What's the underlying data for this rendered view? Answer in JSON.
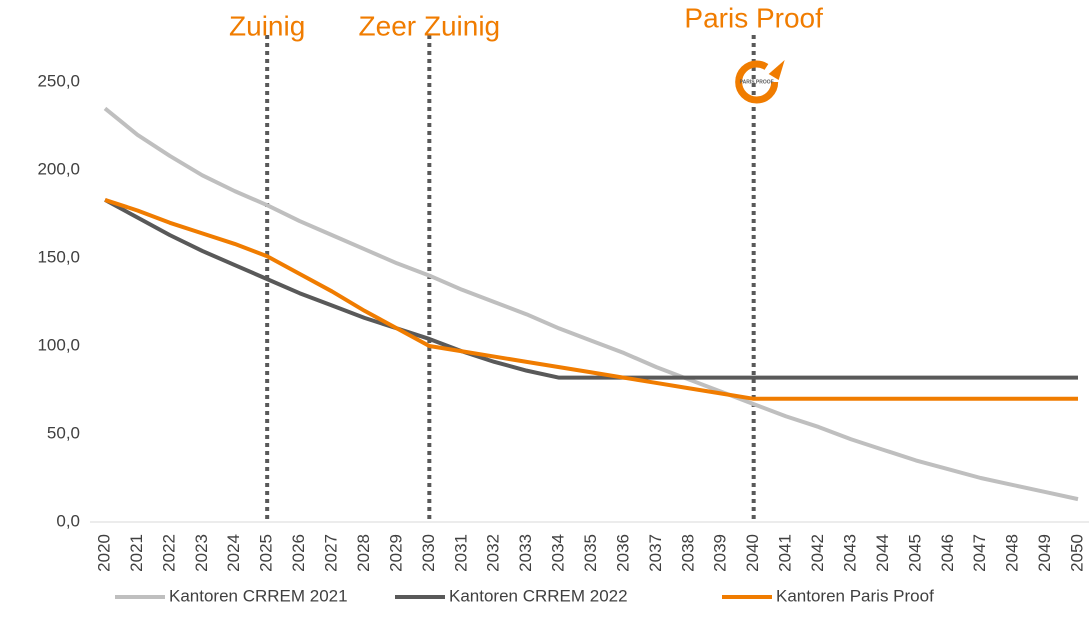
{
  "chart_data": {
    "type": "line",
    "categories": [
      "2020",
      "2021",
      "2022",
      "2023",
      "2024",
      "2025",
      "2026",
      "2027",
      "2028",
      "2029",
      "2030",
      "2031",
      "2032",
      "2033",
      "2034",
      "2035",
      "2036",
      "2037",
      "2038",
      "2039",
      "2040",
      "2041",
      "2042",
      "2043",
      "2044",
      "2045",
      "2046",
      "2047",
      "2048",
      "2049",
      "2050"
    ],
    "series": [
      {
        "name": "Kantoren CRREM 2021",
        "color": "#bfbfbf",
        "values": [
          235,
          220,
          208,
          197,
          188,
          180,
          171,
          163,
          155,
          147,
          140,
          132,
          125,
          118,
          110,
          103,
          96,
          88,
          81,
          74,
          67,
          60,
          54,
          47,
          41,
          35,
          30,
          25,
          21,
          17,
          13
        ]
      },
      {
        "name": "Kantoren CRREM 2022",
        "color": "#595959",
        "values": [
          183,
          173,
          163,
          154,
          146,
          138,
          130,
          123,
          116,
          110,
          104,
          97,
          91,
          86,
          82,
          82,
          82,
          82,
          82,
          82,
          82,
          82,
          82,
          82,
          82,
          82,
          82,
          82,
          82,
          82,
          82
        ]
      },
      {
        "name": "Kantoren Paris Proof",
        "color": "#f07c00",
        "values": [
          183,
          177,
          170,
          164,
          158,
          151,
          141,
          131,
          120,
          110,
          100,
          97,
          94,
          91,
          88,
          85,
          82,
          79,
          76,
          73,
          70,
          70,
          70,
          70,
          70,
          70,
          70,
          70,
          70,
          70,
          70
        ]
      }
    ],
    "ylim": [
      0,
      275
    ],
    "yticks": [
      {
        "value": 0,
        "label": "0,0"
      },
      {
        "value": 50,
        "label": "50,0"
      },
      {
        "value": 100,
        "label": "100,0"
      },
      {
        "value": 150,
        "label": "150,0"
      },
      {
        "value": 200,
        "label": "200,0"
      },
      {
        "value": 250,
        "label": "250,0"
      }
    ],
    "grid": false,
    "legend": "bottom",
    "annotations": [
      {
        "text": "Zuinig",
        "x": "2025",
        "color": "#f07c00"
      },
      {
        "text": "Zeer Zuinig",
        "x": "2030",
        "color": "#f07c00"
      },
      {
        "text": "Paris Proof",
        "x": "2040",
        "color": "#f07c00"
      }
    ],
    "logo_text": "PARIS PROOF"
  }
}
